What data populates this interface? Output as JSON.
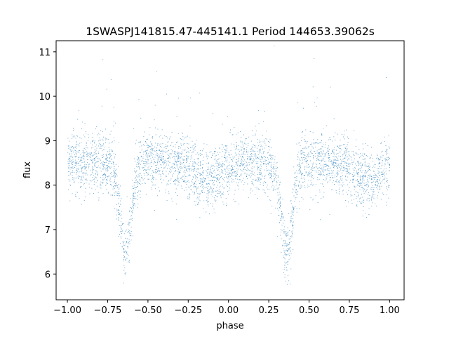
{
  "chart_data": {
    "type": "scatter",
    "title": "1SWASPJ141815.47-445141.1 Period 144653.39062s",
    "xlabel": "phase",
    "ylabel": "flux",
    "xlim": [
      -1.07,
      1.09
    ],
    "ylim": [
      5.42,
      11.25
    ],
    "xticks": [
      -1.0,
      -0.75,
      -0.5,
      -0.25,
      0.0,
      0.25,
      0.5,
      0.75,
      1.0
    ],
    "xtick_labels": [
      "−1.00",
      "−0.75",
      "−0.50",
      "−0.25",
      "0.00",
      "0.25",
      "0.50",
      "0.75",
      "1.00"
    ],
    "yticks": [
      6,
      7,
      8,
      9,
      10,
      11
    ],
    "ytick_labels": [
      "6",
      "7",
      "8",
      "9",
      "10",
      "11"
    ],
    "grid": false,
    "legend": "none",
    "point_color": "#1f77b4",
    "series": [
      {
        "x_range": [
          -1.0,
          1.0
        ],
        "baseline_flux": 8.5,
        "scatter_sigma": 0.33,
        "primary_eclipse": {
          "phase": [
            -0.64,
            0.36
          ],
          "min_flux": 6.5,
          "width": 0.035
        },
        "secondary_dip": {
          "phase": [
            -0.14,
            0.86
          ],
          "min_flux": 8.1,
          "width": 0.08
        },
        "approx_points": 40000
      }
    ]
  }
}
